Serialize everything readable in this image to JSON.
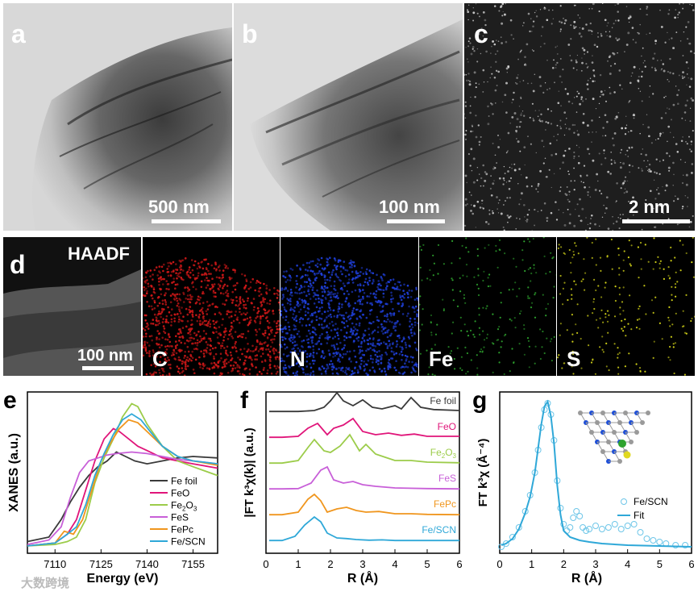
{
  "panels": {
    "a": {
      "label": "a",
      "scalebar": "500 nm"
    },
    "b": {
      "label": "b",
      "scalebar": "100 nm"
    },
    "c": {
      "label": "c",
      "scalebar": "2 nm"
    },
    "d": {
      "label": "d",
      "haadf": "HAADF",
      "scalebar": "100 nm",
      "channels": [
        "C",
        "N",
        "Fe",
        "S"
      ],
      "colors": [
        "#d01818",
        "#1f3fd8",
        "#2ea32e",
        "#d8d818"
      ]
    },
    "e": {
      "label": "e"
    },
    "f": {
      "label": "f"
    },
    "g": {
      "label": "g"
    }
  },
  "watermark": "大数跨境",
  "chart_data": [
    {
      "type": "line",
      "panel": "e",
      "xlabel": "Energy (eV)",
      "ylabel": "XANES (a.u.)",
      "xticks": [
        7110,
        7125,
        7140,
        7155
      ],
      "xlim": [
        7101,
        7163
      ],
      "legend_position": "bottom-right",
      "series": [
        {
          "name": "Fe foil",
          "color": "#3a3a3a",
          "x": [
            7101,
            7108,
            7112,
            7115,
            7118,
            7121,
            7124,
            7127,
            7130,
            7133,
            7136,
            7140,
            7145,
            7150,
            7155,
            7163
          ],
          "y": [
            0.05,
            0.08,
            0.2,
            0.32,
            0.42,
            0.5,
            0.56,
            0.6,
            0.66,
            0.63,
            0.6,
            0.58,
            0.6,
            0.62,
            0.63,
            0.62
          ]
        },
        {
          "name": "FeO",
          "color": "#e0157a",
          "x": [
            7101,
            7110,
            7114,
            7117,
            7120,
            7123,
            7126,
            7129,
            7131,
            7134,
            7137,
            7140,
            7145,
            7150,
            7155,
            7163
          ],
          "y": [
            0.02,
            0.04,
            0.1,
            0.2,
            0.4,
            0.6,
            0.75,
            0.82,
            0.8,
            0.75,
            0.7,
            0.67,
            0.62,
            0.6,
            0.58,
            0.55
          ]
        },
        {
          "name": "Fe2O3",
          "color": "#9ccc4a",
          "x": [
            7101,
            7110,
            7114,
            7117,
            7120,
            7123,
            7126,
            7129,
            7132,
            7135,
            7137,
            7140,
            7145,
            7150,
            7155,
            7163
          ],
          "y": [
            0.02,
            0.03,
            0.05,
            0.08,
            0.2,
            0.45,
            0.62,
            0.75,
            0.9,
            0.99,
            0.97,
            0.85,
            0.7,
            0.6,
            0.56,
            0.5
          ]
        },
        {
          "name": "FeS",
          "color": "#c85fd8",
          "x": [
            7101,
            7108,
            7112,
            7115,
            7118,
            7121,
            7124,
            7127,
            7130,
            7135,
            7140,
            7145,
            7150,
            7155,
            7163
          ],
          "y": [
            0.03,
            0.06,
            0.15,
            0.35,
            0.52,
            0.6,
            0.62,
            0.64,
            0.65,
            0.66,
            0.65,
            0.63,
            0.61,
            0.6,
            0.58
          ]
        },
        {
          "name": "FePc",
          "color": "#f0961e",
          "x": [
            7101,
            7110,
            7113,
            7116,
            7119,
            7122,
            7125,
            7128,
            7131,
            7134,
            7137,
            7140,
            7145,
            7150,
            7155,
            7163
          ],
          "y": [
            0.02,
            0.04,
            0.12,
            0.1,
            0.2,
            0.4,
            0.6,
            0.72,
            0.82,
            0.88,
            0.86,
            0.8,
            0.7,
            0.63,
            0.6,
            0.57
          ]
        },
        {
          "name": "Fe/SCN",
          "color": "#2fa8d8",
          "x": [
            7101,
            7110,
            7114,
            7117,
            7120,
            7123,
            7126,
            7129,
            7132,
            7135,
            7138,
            7141,
            7145,
            7150,
            7155,
            7163
          ],
          "y": [
            0.02,
            0.04,
            0.1,
            0.15,
            0.3,
            0.5,
            0.65,
            0.78,
            0.88,
            0.92,
            0.88,
            0.8,
            0.7,
            0.63,
            0.6,
            0.58
          ]
        }
      ]
    },
    {
      "type": "line",
      "panel": "f",
      "xlabel": "R (Å)",
      "ylabel": "|FT k³χ(k)| (a.u.)",
      "xticks": [
        0,
        1,
        2,
        3,
        4,
        5,
        6
      ],
      "xlim": [
        0,
        6
      ],
      "series": [
        {
          "name": "Fe foil",
          "color": "#3a3a3a",
          "offset": 5,
          "x": [
            0.1,
            0.5,
            1.0,
            1.5,
            1.8,
            2.0,
            2.2,
            2.4,
            2.7,
            3.0,
            3.3,
            3.6,
            4.0,
            4.2,
            4.5,
            4.8,
            5.2,
            6.0
          ],
          "y": [
            0.02,
            0.02,
            0.02,
            0.05,
            0.15,
            0.35,
            0.6,
            0.35,
            0.2,
            0.38,
            0.15,
            0.1,
            0.2,
            0.1,
            0.45,
            0.15,
            0.08,
            0.05
          ]
        },
        {
          "name": "FeO",
          "color": "#e0157a",
          "offset": 4,
          "x": [
            0.1,
            0.5,
            1.0,
            1.3,
            1.6,
            1.9,
            2.1,
            2.4,
            2.7,
            3.0,
            3.4,
            3.8,
            4.2,
            4.6,
            5.0,
            6.0
          ],
          "y": [
            0.02,
            0.02,
            0.05,
            0.3,
            0.45,
            0.1,
            0.3,
            0.4,
            0.6,
            0.2,
            0.1,
            0.15,
            0.08,
            0.12,
            0.05,
            0.05
          ]
        },
        {
          "name": "Fe2O3",
          "color": "#9ccc4a",
          "offset": 3,
          "x": [
            0.1,
            0.5,
            1.0,
            1.3,
            1.5,
            1.8,
            2.0,
            2.3,
            2.6,
            2.9,
            3.1,
            3.4,
            3.7,
            4.0,
            4.5,
            5.0,
            6.0
          ],
          "y": [
            0.02,
            0.02,
            0.1,
            0.5,
            0.75,
            0.4,
            0.35,
            0.55,
            0.9,
            0.4,
            0.6,
            0.3,
            0.2,
            0.1,
            0.1,
            0.05,
            0.03
          ]
        },
        {
          "name": "FeS",
          "color": "#c85fd8",
          "offset": 2,
          "x": [
            0.1,
            0.5,
            1.0,
            1.4,
            1.7,
            1.9,
            2.1,
            2.4,
            2.7,
            3.0,
            3.4,
            4.0,
            5.0,
            6.0
          ],
          "y": [
            0.02,
            0.02,
            0.03,
            0.2,
            0.6,
            0.7,
            0.3,
            0.2,
            0.25,
            0.15,
            0.1,
            0.05,
            0.03,
            0.02
          ]
        },
        {
          "name": "FePc",
          "color": "#f0961e",
          "offset": 1,
          "x": [
            0.1,
            0.5,
            1.0,
            1.3,
            1.5,
            1.7,
            1.9,
            2.2,
            2.5,
            2.8,
            3.1,
            3.5,
            4.0,
            4.5,
            5.0,
            6.0
          ],
          "y": [
            0.02,
            0.02,
            0.1,
            0.5,
            0.65,
            0.45,
            0.1,
            0.2,
            0.25,
            0.15,
            0.1,
            0.12,
            0.05,
            0.05,
            0.03,
            0.02
          ]
        },
        {
          "name": "Fe/SCN",
          "color": "#2fa8d8",
          "offset": 0,
          "x": [
            0.1,
            0.5,
            0.9,
            1.2,
            1.5,
            1.7,
            1.9,
            2.2,
            2.5,
            2.8,
            3.2,
            3.6,
            4.0,
            5.0,
            6.0
          ],
          "y": [
            0.02,
            0.02,
            0.15,
            0.5,
            0.75,
            0.6,
            0.25,
            0.1,
            0.08,
            0.05,
            0.03,
            0.04,
            0.02,
            0.02,
            0.02
          ]
        }
      ]
    },
    {
      "type": "line",
      "panel": "g",
      "xlabel": "R (Å)",
      "ylabel": "FT k³χ (Å⁻⁴)",
      "xticks": [
        0,
        1,
        2,
        3,
        4,
        5,
        6
      ],
      "xlim": [
        0,
        6
      ],
      "ylim": [
        0,
        10
      ],
      "legend_position": "right",
      "series": [
        {
          "name": "Fe/SCN",
          "color": "#6ec6e8",
          "style": "markers",
          "x": [
            0.05,
            0.2,
            0.4,
            0.6,
            0.8,
            0.95,
            1.1,
            1.2,
            1.3,
            1.4,
            1.5,
            1.6,
            1.7,
            1.8,
            1.9,
            2.0,
            2.1,
            2.2,
            2.3,
            2.4,
            2.5,
            2.6,
            2.7,
            2.8,
            3.0,
            3.2,
            3.4,
            3.6,
            3.8,
            4.0,
            4.2,
            4.4,
            4.6,
            4.8,
            5.0,
            5.2,
            5.5,
            5.8
          ],
          "y": [
            0.4,
            0.6,
            1.0,
            1.6,
            2.6,
            3.6,
            5.0,
            6.4,
            7.8,
            8.9,
            9.3,
            8.6,
            7.0,
            4.5,
            2.8,
            1.8,
            1.4,
            1.6,
            2.2,
            2.6,
            2.3,
            1.6,
            1.4,
            1.5,
            1.7,
            1.5,
            1.6,
            1.8,
            1.5,
            1.7,
            1.8,
            1.3,
            0.9,
            0.8,
            0.7,
            0.6,
            0.5,
            0.5
          ]
        },
        {
          "name": "Fit",
          "color": "#2fa8d8",
          "style": "line",
          "x": [
            0.05,
            0.2,
            0.4,
            0.6,
            0.8,
            0.95,
            1.1,
            1.2,
            1.3,
            1.4,
            1.5,
            1.6,
            1.7,
            1.8,
            1.9,
            2.0,
            2.2,
            2.5,
            2.8,
            3.2,
            4.0,
            5.0,
            6.0
          ],
          "y": [
            0.5,
            0.6,
            0.9,
            1.5,
            2.5,
            3.5,
            5.0,
            6.5,
            8.0,
            9.1,
            9.4,
            8.5,
            6.8,
            4.2,
            2.4,
            1.4,
            1.0,
            0.8,
            0.7,
            0.6,
            0.5,
            0.45,
            0.4
          ]
        }
      ]
    }
  ]
}
